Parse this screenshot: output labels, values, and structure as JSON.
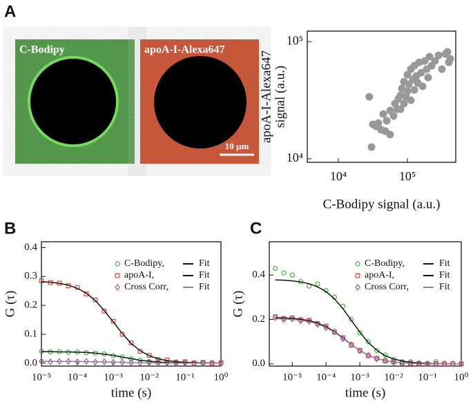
{
  "panel_labels": [
    "A",
    "B",
    "C"
  ],
  "images": [
    {
      "label": "C-Bodipy"
    },
    {
      "label": "apoA-I-Alexa647",
      "scale_bar": "10 µm"
    }
  ],
  "chart_data": [
    {
      "type": "scatter",
      "xlabel": "C-Bodipy signal (a.u.)",
      "ylabel": [
        "apoA-I-Alexa647",
        "signal (a.u.)"
      ],
      "xscale": "log",
      "yscale": "log",
      "xlim": [
        3548,
        501000
      ],
      "ylim": [
        9330,
        123000
      ],
      "xticks": [
        {
          "value": 10000,
          "label": "10⁴"
        },
        {
          "value": 100000,
          "label": "10⁵"
        }
      ],
      "yticks": [
        {
          "value": 10000,
          "label": "10⁴"
        },
        {
          "value": 100000,
          "label": "10⁵"
        }
      ],
      "color": "#999999",
      "x": [
        28000,
        30200,
        31600,
        35500,
        38000,
        41700,
        44700,
        47900,
        50100,
        56200,
        56200,
        63100,
        66100,
        70800,
        74100,
        79400,
        79400,
        83200,
        89100,
        89100,
        95500,
        100000,
        100000,
        104700,
        112200,
        112200,
        120200,
        125900,
        125900,
        134900,
        141300,
        147900,
        158500,
        166000,
        177800,
        190500,
        199500,
        208900,
        223900,
        251200,
        281800,
        316200,
        354800,
        380200,
        398100,
        416900
      ],
      "values": [
        33800,
        12600,
        19700,
        18900,
        20200,
        17700,
        24100,
        17200,
        21100,
        25800,
        16100,
        23200,
        29600,
        26500,
        32500,
        34800,
        26500,
        39800,
        29600,
        45600,
        33800,
        37700,
        52200,
        43200,
        31600,
        58200,
        47500,
        38700,
        62200,
        50800,
        44400,
        66600,
        54300,
        41500,
        68400,
        58200,
        49400,
        74300,
        62200,
        68400,
        76300,
        58200,
        78400,
        81700,
        66600,
        71300
      ]
    },
    {
      "type": "line",
      "xlabel": "time (s)",
      "ylabel": "G (τ)",
      "xscale": "log",
      "xlim": [
        1e-05,
        1
      ],
      "ylim": [
        -0.01,
        0.42
      ],
      "xticks": [
        {
          "value": 1e-05,
          "label": "10⁻⁵"
        },
        {
          "value": 0.0001,
          "label": "10⁻⁴"
        },
        {
          "value": 0.001,
          "label": "10⁻³"
        },
        {
          "value": 0.01,
          "label": "10⁻²"
        },
        {
          "value": 0.1,
          "label": "10⁻¹"
        },
        {
          "value": 1,
          "label": "10⁰"
        }
      ],
      "yticks": [
        {
          "value": 0,
          "label": "0.0"
        },
        0.1,
        0.2,
        0.3,
        0.4
      ],
      "legend": "upper right",
      "x": [
        1e-05,
        1.78e-05,
        3.16e-05,
        5.62e-05,
        0.0001,
        0.000178,
        0.000316,
        0.000562,
        0.001,
        0.00178,
        0.00316,
        0.00562,
        0.01,
        0.0178,
        0.0316,
        0.0562,
        0.1,
        0.178,
        0.316,
        0.562,
        1
      ],
      "series": [
        {
          "name": "C-Bodipy,",
          "color": "#3cb83c",
          "marker": "circle",
          "values": [
            0.041,
            0.039,
            0.04,
            0.038,
            0.039,
            0.036,
            0.035,
            0.032,
            0.026,
            0.022,
            0.015,
            0.011,
            0.006,
            0.004,
            0.003,
            0.001,
            0.002,
            0.0,
            0.001,
            -0.001,
            0.0
          ]
        },
        {
          "name": "apoA-I,",
          "color": "#e0452a",
          "marker": "square",
          "values": [
            0.285,
            0.279,
            0.277,
            0.268,
            0.262,
            0.24,
            0.219,
            0.18,
            0.145,
            0.1,
            0.07,
            0.041,
            0.027,
            0.013,
            0.011,
            0.004,
            0.005,
            0.001,
            0.003,
            0.0,
            0.002
          ]
        },
        {
          "name": "Cross Corr,",
          "color": "#a84ca8",
          "marker": "diamond",
          "values": [
            0.007,
            0.005,
            0.006,
            0.006,
            0.005,
            0.006,
            0.004,
            0.005,
            0.003,
            0.003,
            0.002,
            0.001,
            0.002,
            0.0,
            0.001,
            0.0,
            0.001,
            -0.001,
            0.0,
            0.001,
            0.0
          ]
        },
        {
          "name": "Fit",
          "color": "#111111",
          "marker": "line",
          "values": [
            0.04,
            0.04,
            0.039,
            0.039,
            0.038,
            0.037,
            0.035,
            0.031,
            0.027,
            0.021,
            0.016,
            0.01,
            0.007,
            0.004,
            0.002,
            0.001,
            0.001,
            0,
            0,
            0,
            0
          ]
        },
        {
          "name": "Fit",
          "color": "#111111",
          "marker": "line",
          "values": [
            0.282,
            0.28,
            0.276,
            0.27,
            0.259,
            0.242,
            0.217,
            0.182,
            0.143,
            0.103,
            0.068,
            0.043,
            0.026,
            0.015,
            0.009,
            0.005,
            0.003,
            0.002,
            0.001,
            0.001,
            0
          ]
        },
        {
          "name": "Fit",
          "color": "#888888",
          "marker": "line",
          "values": [
            0.006,
            0.006,
            0.006,
            0.006,
            0.006,
            0.005,
            0.005,
            0.004,
            0.004,
            0.003,
            0.002,
            0.002,
            0.001,
            0.001,
            0,
            0,
            0,
            0,
            0,
            0,
            0
          ]
        }
      ]
    },
    {
      "type": "line",
      "xlabel": "time (s)",
      "ylabel": "G (τ)",
      "xscale": "log",
      "xlim": [
        2.1e-06,
        1
      ],
      "ylim": [
        -0.01,
        0.55
      ],
      "xticks": [
        {
          "value": 1e-05,
          "label": "10⁻⁵"
        },
        {
          "value": 0.0001,
          "label": "10⁻⁴"
        },
        {
          "value": 0.001,
          "label": "10⁻³"
        },
        {
          "value": 0.01,
          "label": "10⁻²"
        },
        {
          "value": 0.1,
          "label": "10⁻¹"
        },
        {
          "value": 1,
          "label": "10⁰"
        }
      ],
      "yticks": [
        {
          "value": 0,
          "label": "0.0"
        },
        0.2,
        0.4
      ],
      "legend": "upper right",
      "x": [
        3.16e-06,
        5.62e-06,
        1e-05,
        1.78e-05,
        3.16e-05,
        5.62e-05,
        0.0001,
        0.000178,
        0.000316,
        0.000562,
        0.001,
        0.00178,
        0.00316,
        0.00562,
        0.01,
        0.0178,
        0.0316,
        0.0562,
        0.1,
        0.178,
        0.316,
        0.562,
        1
      ],
      "series": [
        {
          "name": "C-Bodipy,",
          "color": "#3cb83c",
          "marker": "circle",
          "values": [
            0.43,
            0.41,
            0.4,
            0.37,
            0.35,
            0.36,
            0.33,
            0.3,
            0.26,
            0.2,
            0.14,
            0.1,
            0.06,
            0.04,
            0.02,
            0.01,
            0.01,
            0.0,
            0.0,
            0.01,
            0.0,
            0.0,
            0.0
          ]
        },
        {
          "name": "apoA-I,",
          "color": "#e0452a",
          "marker": "square",
          "values": [
            0.212,
            0.205,
            0.207,
            0.199,
            0.196,
            0.182,
            0.17,
            0.143,
            0.118,
            0.085,
            0.061,
            0.037,
            0.025,
            0.013,
            0.009,
            0.004,
            0.003,
            0.002,
            0.0,
            0.001,
            0.0,
            0.0,
            0.0
          ]
        },
        {
          "name": "Cross Corr,",
          "color": "#a84ca8",
          "marker": "diamond",
          "values": [
            0.208,
            0.2,
            0.203,
            0.194,
            0.192,
            0.178,
            0.163,
            0.144,
            0.113,
            0.087,
            0.058,
            0.039,
            0.023,
            0.015,
            0.007,
            0.005,
            0.002,
            0.002,
            0.001,
            0.0,
            0.001,
            0.0,
            0.0
          ]
        },
        {
          "name": "Fit",
          "color": "#111111",
          "marker": "line",
          "values": [
            0.378,
            0.377,
            0.374,
            0.369,
            0.361,
            0.347,
            0.326,
            0.293,
            0.249,
            0.196,
            0.143,
            0.096,
            0.061,
            0.037,
            0.022,
            0.013,
            0.007,
            0.004,
            0.002,
            0.001,
            0.001,
            0,
            0
          ]
        },
        {
          "name": "Fit",
          "color": "#111111",
          "marker": "line",
          "values": [
            0.208,
            0.207,
            0.205,
            0.201,
            0.195,
            0.184,
            0.168,
            0.145,
            0.117,
            0.087,
            0.06,
            0.038,
            0.024,
            0.014,
            0.008,
            0.005,
            0.003,
            0.001,
            0.001,
            0,
            0,
            0,
            0
          ]
        },
        {
          "name": "Fit",
          "color": "#888888",
          "marker": "line",
          "values": [
            0.203,
            0.202,
            0.2,
            0.196,
            0.19,
            0.18,
            0.164,
            0.142,
            0.115,
            0.086,
            0.06,
            0.038,
            0.024,
            0.014,
            0.008,
            0.005,
            0.003,
            0.001,
            0.001,
            0,
            0,
            0,
            0
          ]
        }
      ]
    }
  ]
}
